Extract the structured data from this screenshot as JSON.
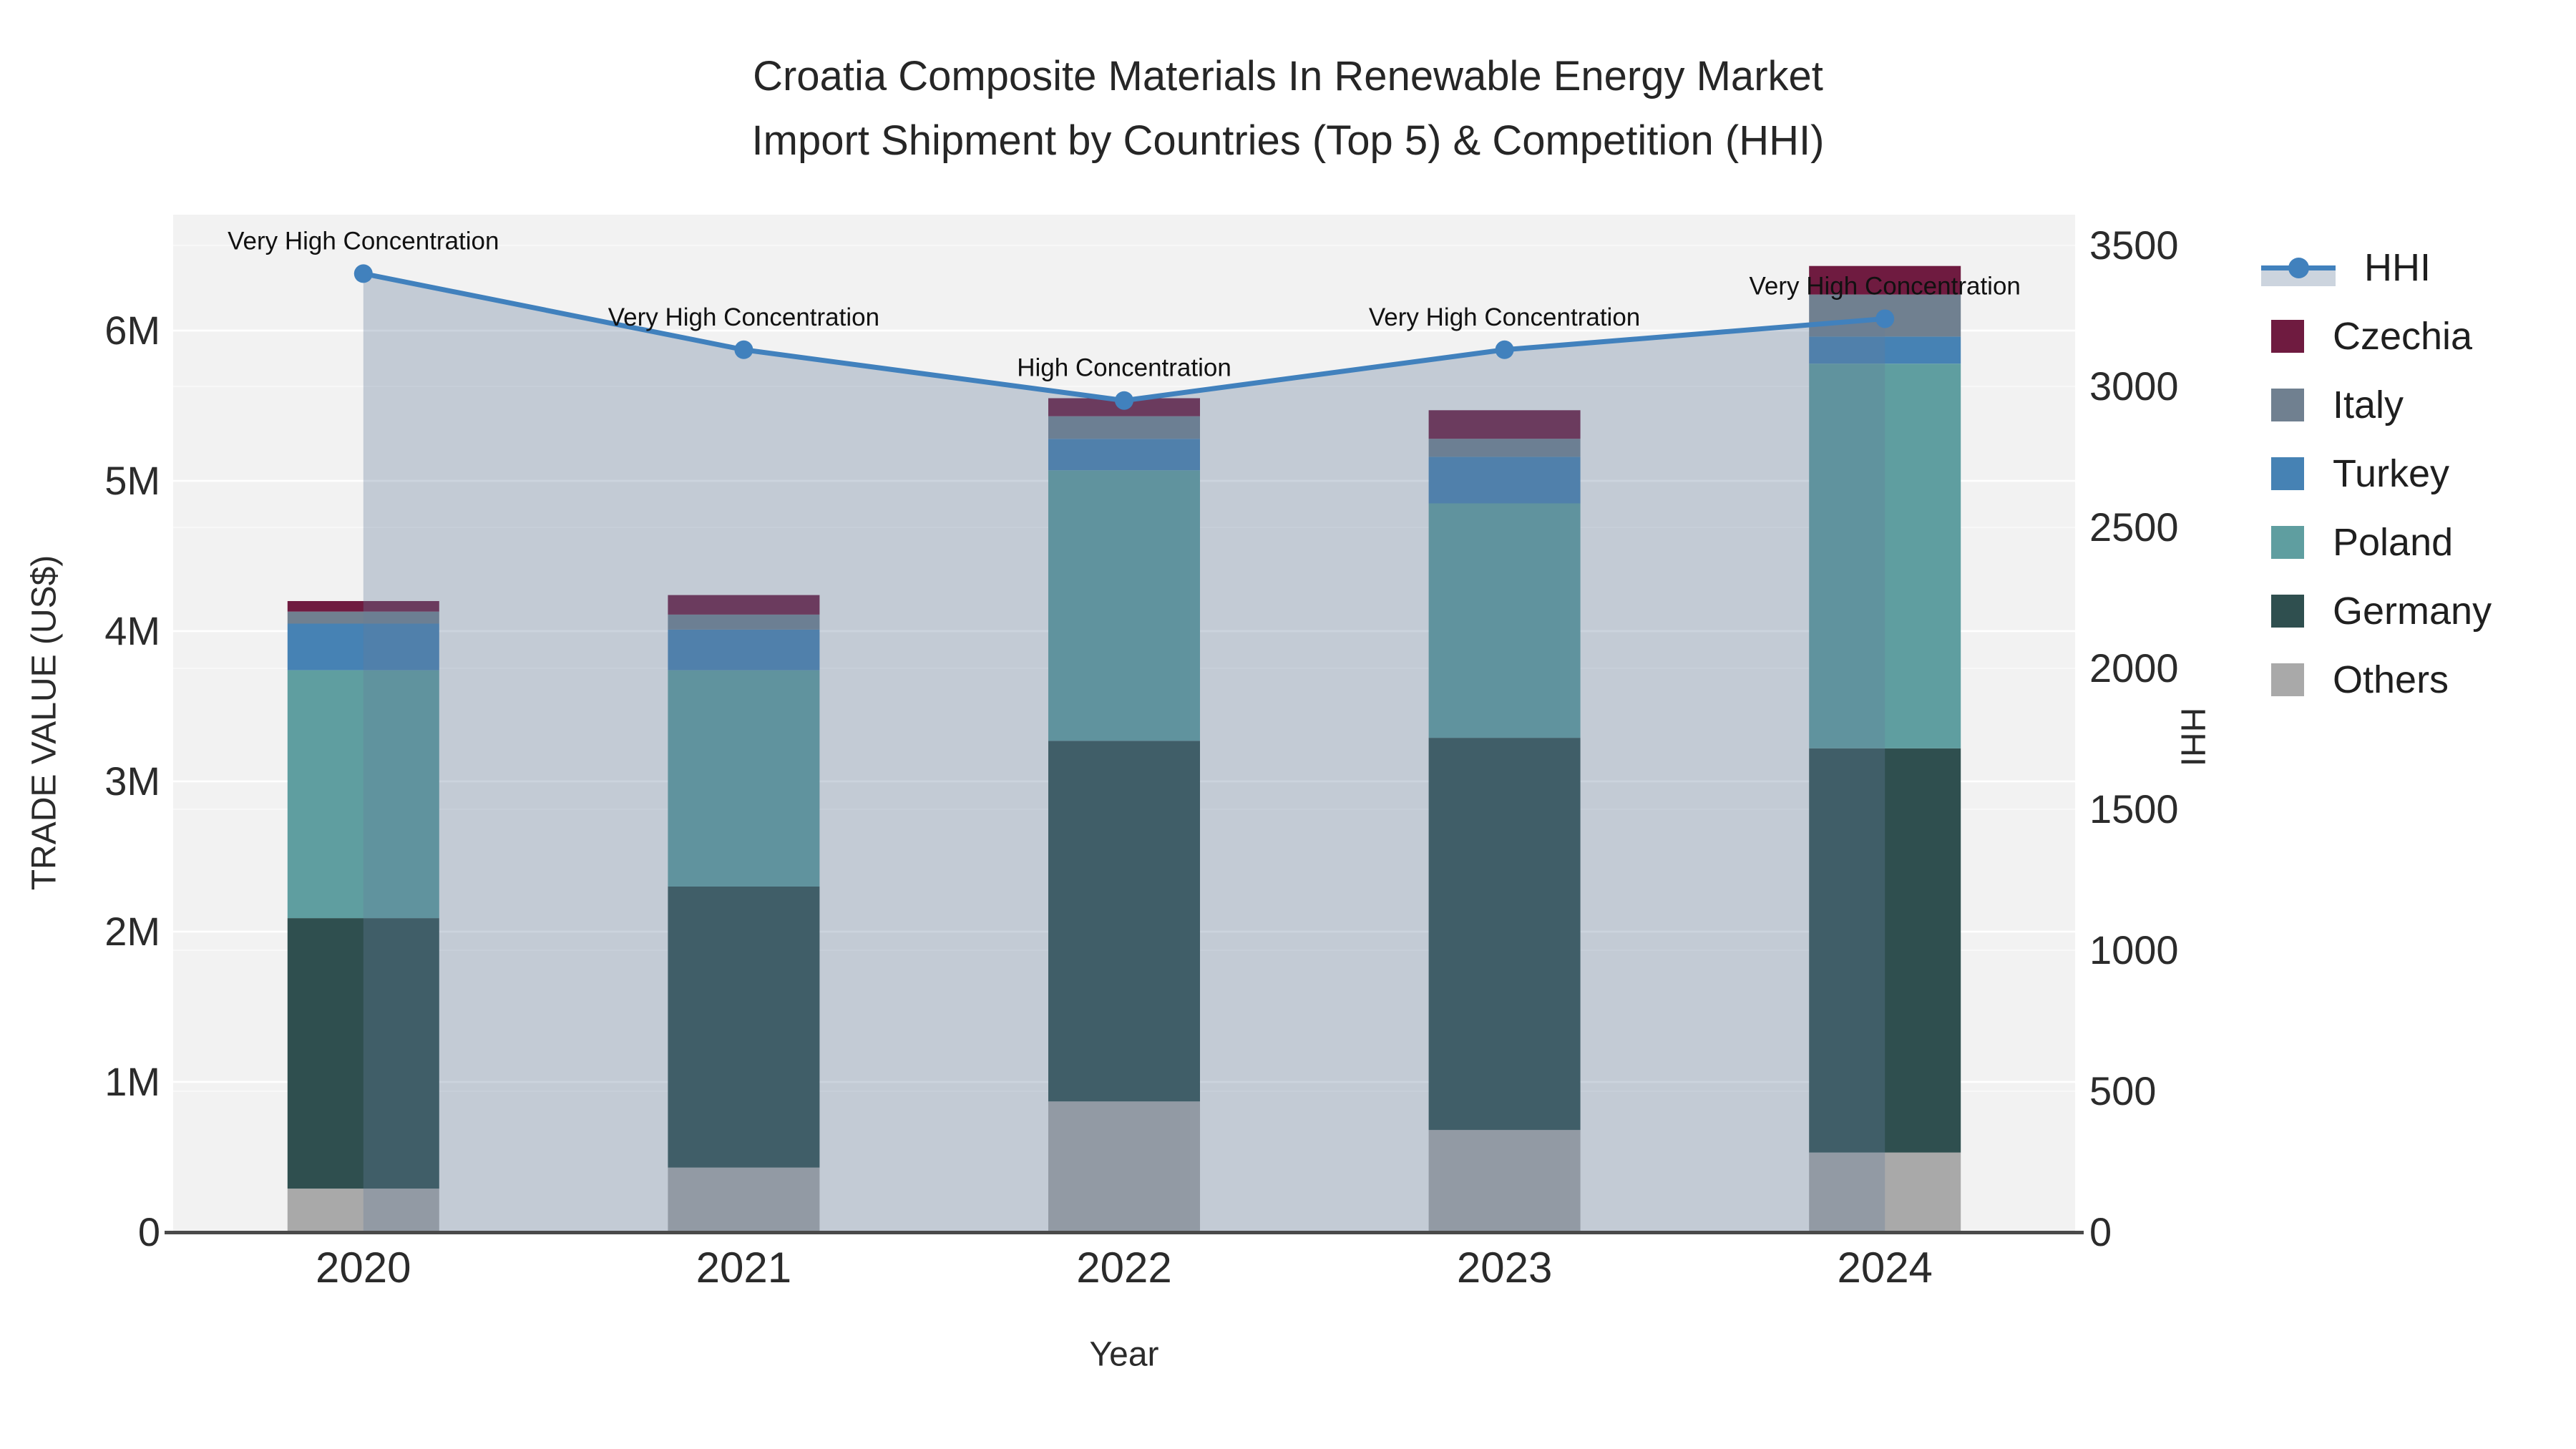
{
  "title": {
    "line1": "Croatia Composite Materials In Renewable Energy Market",
    "line2": "Import Shipment by Countries (Top 5) & Competition (HHI)"
  },
  "axes": {
    "x_title": "Year",
    "y_left_title": "TRADE VALUE (US$)",
    "y_right_title": "HHI",
    "y_left_ticks": [
      "0",
      "1M",
      "2M",
      "3M",
      "4M",
      "5M",
      "6M"
    ],
    "y_right_ticks": [
      "0",
      "500",
      "1000",
      "1500",
      "2000",
      "2500",
      "3000",
      "3500"
    ]
  },
  "legend": [
    {
      "label": "HHI",
      "type": "line",
      "color": "#4181bd"
    },
    {
      "label": "Czechia",
      "type": "square",
      "color": "#6f1b40"
    },
    {
      "label": "Italy",
      "type": "square",
      "color": "#708090"
    },
    {
      "label": "Turkey",
      "type": "square",
      "color": "#4682b4"
    },
    {
      "label": "Poland",
      "type": "square",
      "color": "#5f9ea0"
    },
    {
      "label": "Germany",
      "type": "square",
      "color": "#2f4f4f"
    },
    {
      "label": "Others",
      "type": "square",
      "color": "#a9a9a9"
    }
  ],
  "colors": {
    "plot_background": "#f2f2f2",
    "gridline": "#ffffff",
    "axis_line": "#4a4a4a",
    "hhi_line": "#4181bd",
    "hhi_area_fill": "rgba(99,124,154,0.33)",
    "annotation_text": "#111111",
    "tick_text": "#2b2b2b"
  },
  "chart_data": {
    "type": "bar+line",
    "title": "Croatia Composite Materials In Renewable Energy Market — Import Shipment by Countries (Top 5) & Competition (HHI)",
    "xlabel": "Year",
    "ylabel_left": "TRADE VALUE (US$)",
    "ylabel_right": "HHI",
    "categories": [
      "2020",
      "2021",
      "2022",
      "2023",
      "2024"
    ],
    "bar_value_unit": "million US$",
    "stack_order_bottom_to_top": [
      "Others",
      "Germany",
      "Poland",
      "Turkey",
      "Italy",
      "Czechia"
    ],
    "series": [
      {
        "name": "Others",
        "color": "#a9a9a9",
        "values": [
          0.29,
          0.43,
          0.87,
          0.68,
          0.53
        ]
      },
      {
        "name": "Germany",
        "color": "#2f4f4f",
        "values": [
          1.8,
          1.87,
          2.4,
          2.61,
          2.69
        ]
      },
      {
        "name": "Poland",
        "color": "#5f9ea0",
        "values": [
          1.65,
          1.44,
          1.8,
          1.56,
          2.56
        ]
      },
      {
        "name": "Turkey",
        "color": "#4682b4",
        "values": [
          0.31,
          0.27,
          0.21,
          0.31,
          0.18
        ]
      },
      {
        "name": "Italy",
        "color": "#708090",
        "values": [
          0.08,
          0.1,
          0.15,
          0.12,
          0.28
        ]
      },
      {
        "name": "Czechia",
        "color": "#6f1b40",
        "values": [
          0.07,
          0.13,
          0.12,
          0.19,
          0.19
        ]
      }
    ],
    "bar_totals": [
      4.2,
      4.24,
      5.55,
      5.47,
      6.43
    ],
    "line_series": {
      "name": "HHI",
      "color": "#4181bd",
      "values": [
        3400,
        3130,
        2950,
        3130,
        3240
      ],
      "area_fill": "rgba(99,124,154,0.33)"
    },
    "annotations": [
      "Very High Concentration",
      "Very High Concentration",
      "High Concentration",
      "Very High Concentration",
      "Very High Concentration"
    ],
    "y_left_range_M": [
      0,
      6.77
    ],
    "y_right_range": [
      0,
      3610
    ],
    "grid": "on",
    "legend_position": "right"
  }
}
